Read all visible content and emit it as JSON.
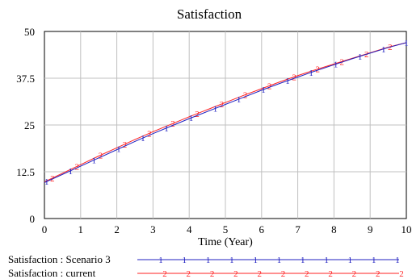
{
  "chart_data": {
    "type": "line",
    "title": "Satisfaction",
    "xlabel": "Time (Year)",
    "ylabel": "",
    "xlim": [
      0,
      10
    ],
    "ylim": [
      0,
      50
    ],
    "x_ticks": [
      "0",
      "1",
      "2",
      "3",
      "4",
      "5",
      "6",
      "7",
      "8",
      "9",
      "10"
    ],
    "y_ticks": [
      "0",
      "12.5",
      "25",
      "37.5",
      "50"
    ],
    "grid": true,
    "legend_position": "bottom",
    "series": [
      {
        "name": "Satisfaction : Scenario 3",
        "marker": "1",
        "color": "#2020c0",
        "x": [
          0,
          0.5,
          1,
          1.5,
          2,
          2.5,
          3,
          3.5,
          4,
          4.5,
          5,
          5.5,
          6,
          6.5,
          7,
          7.5,
          8,
          8.5,
          9,
          9.5,
          10
        ],
        "values": [
          9.6,
          11.8,
          14.0,
          16.2,
          18.4,
          20.6,
          22.7,
          24.7,
          26.7,
          28.6,
          30.5,
          32.4,
          34.3,
          36.1,
          37.8,
          39.5,
          41.1,
          42.7,
          44.2,
          45.7,
          47.0
        ]
      },
      {
        "name": "Satisfaction : current",
        "marker": "2",
        "color": "#ff2020",
        "x": [
          0,
          0.5,
          1,
          1.5,
          2,
          2.5,
          3,
          3.5,
          4,
          4.5,
          5,
          5.5,
          6,
          6.5,
          7,
          7.5,
          8,
          8.5,
          9,
          9.5,
          10
        ],
        "values": [
          9.8,
          12.1,
          14.4,
          16.7,
          18.9,
          21.1,
          23.2,
          25.2,
          27.2,
          29.1,
          31.0,
          32.9,
          34.7,
          36.5,
          38.2,
          39.8,
          41.3,
          42.8,
          44.3,
          45.8,
          47.0
        ]
      }
    ],
    "marker_x": [
      [
        0.06,
        0.72,
        1.37,
        2.05,
        2.72,
        3.37,
        4.05,
        4.72,
        5.37,
        6.05,
        6.72,
        7.37,
        8.05,
        8.72,
        9.37,
        10.0
      ],
      [
        0.22,
        0.9,
        1.55,
        2.22,
        2.9,
        3.55,
        4.22,
        4.9,
        5.55,
        6.22,
        6.9,
        7.55,
        8.22,
        8.9,
        9.55
      ]
    ]
  }
}
